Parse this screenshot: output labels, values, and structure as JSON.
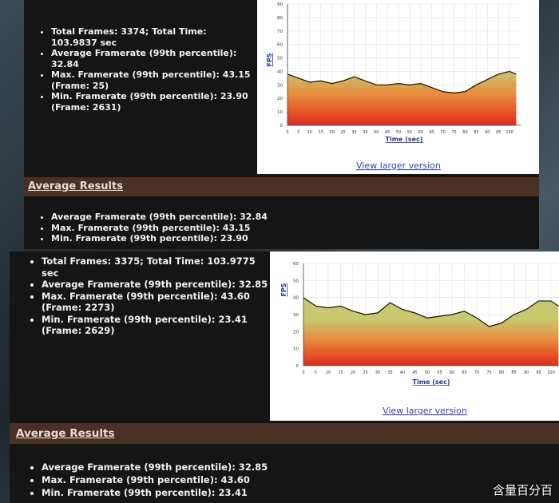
{
  "panels": [
    {
      "stats": [
        "Total Frames: 3374; Total Time: 103.9837 sec",
        "Average Framerate (99th percentile): 32.84",
        "Max. Framerate (99th percentile): 43.15 (Frame: 25)",
        "Min. Framerate (99th percentile): 23.90 (Frame: 2631)"
      ],
      "link": "View larger version",
      "section_title": "Average Results",
      "averages": [
        "Average Framerate (99th percentile): 32.84",
        "Max. Framerate (99th percentile): 43.15",
        "Min. Framerate (99th percentile): 23.90"
      ]
    },
    {
      "stats": [
        "Total Frames: 3375; Total Time: 103.9775 sec",
        "Average Framerate (99th percentile): 32.85",
        "Max. Framerate (99th percentile): 43.60 (Frame: 2273)",
        "Min. Framerate (99th percentile): 23.41 (Frame: 2629)"
      ],
      "link": "View larger version",
      "section_title": "Average Results",
      "averages": [
        "Average Framerate (99th percentile): 32.85",
        "Max. Framerate (99th percentile): 43.60",
        "Min. Framerate (99th percentile): 23.41"
      ]
    }
  ],
  "chart_data": [
    {
      "type": "line",
      "y_label": "FPS",
      "x_label": "Time (sec)",
      "grid": true,
      "xlim": [
        0,
        105
      ],
      "ylim": [
        0,
        90
      ],
      "xticks": [
        0,
        5,
        10,
        15,
        20,
        25,
        30,
        35,
        40,
        45,
        50,
        55,
        60,
        65,
        70,
        75,
        80,
        85,
        90,
        95,
        100
      ],
      "yticks": [
        0,
        10,
        20,
        30,
        40,
        50,
        60,
        70,
        80,
        90
      ],
      "x": [
        0,
        5,
        10,
        15,
        20,
        25,
        30,
        35,
        40,
        45,
        50,
        55,
        60,
        65,
        70,
        75,
        80,
        85,
        90,
        95,
        100,
        103
      ],
      "series": [
        {
          "color": "#111111",
          "values": [
            38,
            35,
            32,
            33,
            31,
            33,
            36,
            33,
            30,
            30,
            31,
            30,
            31,
            28,
            25,
            24,
            25,
            30,
            34,
            38,
            40,
            38
          ]
        }
      ]
    },
    {
      "type": "line",
      "y_label": "FPS",
      "x_label": "Time (sec)",
      "grid": true,
      "xlim": [
        0,
        105
      ],
      "ylim": [
        0,
        60
      ],
      "xticks": [
        0,
        5,
        10,
        15,
        20,
        25,
        30,
        35,
        40,
        45,
        50,
        55,
        60,
        65,
        70,
        75,
        80,
        85,
        90,
        95,
        100
      ],
      "yticks": [
        0,
        10,
        20,
        30,
        40,
        50,
        60
      ],
      "x": [
        0,
        5,
        10,
        15,
        20,
        25,
        30,
        35,
        40,
        45,
        50,
        55,
        60,
        65,
        70,
        75,
        80,
        85,
        90,
        95,
        100,
        103
      ],
      "series": [
        {
          "color": "#111111",
          "values": [
            40,
            35,
            34,
            35,
            32,
            30,
            31,
            37,
            33,
            31,
            28,
            29,
            30,
            32,
            28,
            23,
            25,
            30,
            33,
            38,
            38,
            35
          ]
        }
      ]
    }
  ],
  "watermark": "含量百分百"
}
